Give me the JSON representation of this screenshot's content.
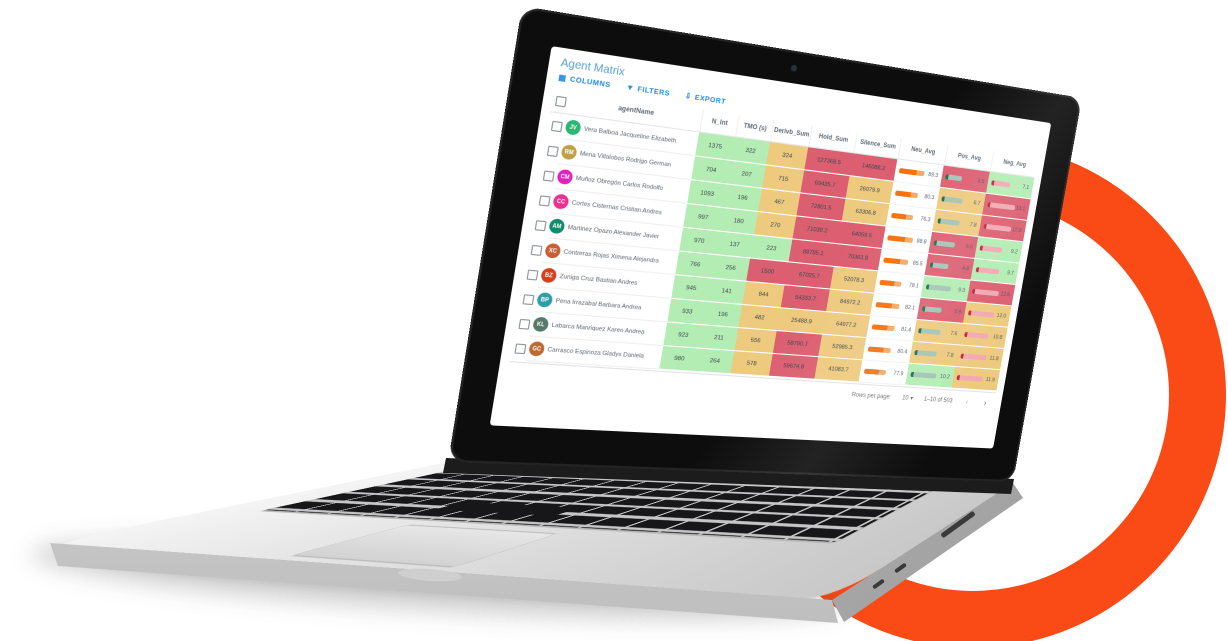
{
  "app": {
    "title": "Agent Matrix",
    "accent_color": "#1e88e5",
    "toolbar": [
      {
        "label": "COLUMNS",
        "icon": "columns-icon",
        "glyph": "▦"
      },
      {
        "label": "FILTERS",
        "icon": "filter-icon",
        "glyph": "▼"
      },
      {
        "label": "EXPORT",
        "icon": "export-icon",
        "glyph": "⇩"
      }
    ]
  },
  "colors": {
    "ring_orange": "#fa4a16",
    "cell_green": "#b3edb3",
    "cell_tan": "#eeca7f",
    "cell_red": "#dc5f71",
    "neu_bar": "#f4700d",
    "pos_bar": "#1e6b47",
    "neg_bar": "#c22430"
  },
  "table": {
    "columns": [
      "agentName",
      "N_Int",
      "TMO (s)",
      "Derivb_Sum",
      "Hold_Sum",
      "Silence_Sum",
      "Neu_Avg",
      "Pos_Avg",
      "Neg_Avg"
    ],
    "rows": [
      {
        "initials": "JV",
        "avatar_color": "#2bb673",
        "name": "Vera Balboa Jacqueline Elizabeth",
        "cells": [
          {
            "v": "1375",
            "bg": "green"
          },
          {
            "v": "322",
            "bg": "green"
          },
          {
            "v": "324",
            "bg": "tan"
          },
          {
            "v": "127368.5",
            "bg": "red"
          },
          {
            "v": "146088.2",
            "bg": "red"
          }
        ],
        "neu": {
          "v": "89.3",
          "bg": "white"
        },
        "pos": {
          "v": "3.5",
          "bg": "red"
        },
        "neg": {
          "v": "7.1",
          "bg": "green"
        }
      },
      {
        "initials": "RM",
        "avatar_color": "#bfa046",
        "name": "Mena Villalobos Rodrigo German",
        "cells": [
          {
            "v": "704",
            "bg": "green"
          },
          {
            "v": "207",
            "bg": "green"
          },
          {
            "v": "715",
            "bg": "tan"
          },
          {
            "v": "69435.7",
            "bg": "red"
          },
          {
            "v": "26079.9",
            "bg": "tan"
          }
        ],
        "neu": {
          "v": "80.3",
          "bg": "white"
        },
        "pos": {
          "v": "6.7",
          "bg": "tan"
        },
        "neg": {
          "v": "13.1",
          "bg": "red"
        }
      },
      {
        "initials": "CM",
        "avatar_color": "#e31fbd",
        "name": "Muñoz Obregón Carlos Rodolfo",
        "cells": [
          {
            "v": "1093",
            "bg": "green"
          },
          {
            "v": "196",
            "bg": "green"
          },
          {
            "v": "467",
            "bg": "tan"
          },
          {
            "v": "72801.5",
            "bg": "red"
          },
          {
            "v": "63306.8",
            "bg": "tan"
          }
        ],
        "neu": {
          "v": "76.3",
          "bg": "white"
        },
        "pos": {
          "v": "7.8",
          "bg": "tan"
        },
        "neg": {
          "v": "12.9",
          "bg": "red"
        }
      },
      {
        "initials": "CC",
        "avatar_color": "#ef2f8f",
        "name": "Cortes Cisternas Cristian Andres",
        "cells": [
          {
            "v": "997",
            "bg": "green"
          },
          {
            "v": "180",
            "bg": "green"
          },
          {
            "v": "270",
            "bg": "tan"
          },
          {
            "v": "71038.2",
            "bg": "red"
          },
          {
            "v": "64059.5",
            "bg": "red"
          }
        ],
        "neu": {
          "v": "88.8",
          "bg": "white"
        },
        "pos": {
          "v": "6.6",
          "bg": "red"
        },
        "neg": {
          "v": "9.2",
          "bg": "green"
        }
      },
      {
        "initials": "AM",
        "avatar_color": "#0f8a6a",
        "name": "Martinez Opazo Alexander Javier",
        "cells": [
          {
            "v": "970",
            "bg": "green"
          },
          {
            "v": "137",
            "bg": "green"
          },
          {
            "v": "223",
            "bg": "green"
          },
          {
            "v": "88785.1",
            "bg": "red"
          },
          {
            "v": "70363.8",
            "bg": "red"
          }
        ],
        "neu": {
          "v": "85.5",
          "bg": "white"
        },
        "pos": {
          "v": "4.8",
          "bg": "red"
        },
        "neg": {
          "v": "9.7",
          "bg": "green"
        }
      },
      {
        "initials": "XC",
        "avatar_color": "#c75f35",
        "name": "Contreras Rojas Ximena Alejandra",
        "cells": [
          {
            "v": "766",
            "bg": "green"
          },
          {
            "v": "256",
            "bg": "green"
          },
          {
            "v": "1500",
            "bg": "red"
          },
          {
            "v": "67025.7",
            "bg": "red"
          },
          {
            "v": "52078.3",
            "bg": "tan"
          }
        ],
        "neu": {
          "v": "78.1",
          "bg": "white"
        },
        "pos": {
          "v": "9.3",
          "bg": "green"
        },
        "neg": {
          "v": "12.6",
          "bg": "red"
        }
      },
      {
        "initials": "BZ",
        "avatar_color": "#d2401e",
        "name": "Zuniga Cruz Bastian Andres",
        "cells": [
          {
            "v": "945",
            "bg": "green"
          },
          {
            "v": "141",
            "bg": "green"
          },
          {
            "v": "844",
            "bg": "tan"
          },
          {
            "v": "54333.7",
            "bg": "red"
          },
          {
            "v": "84972.2",
            "bg": "tan"
          }
        ],
        "neu": {
          "v": "82.1",
          "bg": "white"
        },
        "pos": {
          "v": "5.9",
          "bg": "red"
        },
        "neg": {
          "v": "12.0",
          "bg": "tan"
        }
      },
      {
        "initials": "BP",
        "avatar_color": "#2e9daa",
        "name": "Pena Irrazabal Barbara Andrea",
        "cells": [
          {
            "v": "933",
            "bg": "green"
          },
          {
            "v": "196",
            "bg": "green"
          },
          {
            "v": "482",
            "bg": "tan"
          },
          {
            "v": "25488.9",
            "bg": "tan"
          },
          {
            "v": "64977.2",
            "bg": "tan"
          }
        ],
        "neu": {
          "v": "81.4",
          "bg": "white"
        },
        "pos": {
          "v": "7.6",
          "bg": "tan"
        },
        "neg": {
          "v": "10.8",
          "bg": "tan"
        }
      },
      {
        "initials": "KL",
        "avatar_color": "#55796a",
        "name": "Labarca Manriquez Karen Andrea",
        "cells": [
          {
            "v": "923",
            "bg": "green"
          },
          {
            "v": "211",
            "bg": "green"
          },
          {
            "v": "556",
            "bg": "tan"
          },
          {
            "v": "58790.7",
            "bg": "red"
          },
          {
            "v": "52985.3",
            "bg": "tan"
          }
        ],
        "neu": {
          "v": "80.4",
          "bg": "white"
        },
        "pos": {
          "v": "7.8",
          "bg": "tan"
        },
        "neg": {
          "v": "11.8",
          "bg": "tan"
        }
      },
      {
        "initials": "GC",
        "avatar_color": "#bd6a32",
        "name": "Carrasco Espinoza Gladys Daniela",
        "cells": [
          {
            "v": "980",
            "bg": "green"
          },
          {
            "v": "264",
            "bg": "green"
          },
          {
            "v": "578",
            "bg": "tan"
          },
          {
            "v": "59674.8",
            "bg": "red"
          },
          {
            "v": "41083.7",
            "bg": "tan"
          }
        ],
        "neu": {
          "v": "77.9",
          "bg": "white"
        },
        "pos": {
          "v": "10.2",
          "bg": "green"
        },
        "neg": {
          "v": "11.9",
          "bg": "tan"
        }
      }
    ],
    "footer": {
      "rows_per_page_label": "Rows per page:",
      "rows_per_page": "10",
      "caret": "▾",
      "range": "1–10 of 503",
      "prev": "‹",
      "next": "›"
    }
  }
}
